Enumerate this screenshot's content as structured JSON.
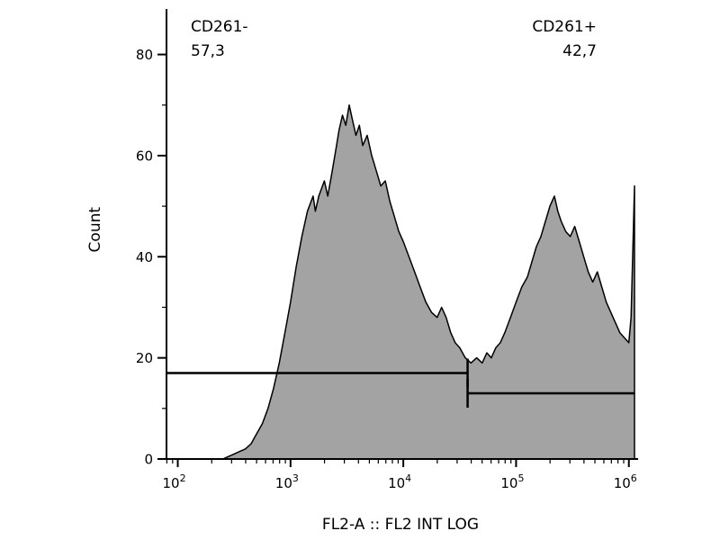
{
  "chart_data": {
    "type": "area",
    "title": "",
    "xlabel": "FL2-A :: FL2 INT LOG",
    "ylabel": "Count",
    "x_scale": "log",
    "xlim_log": [
      1.9,
      6.05
    ],
    "ylim": [
      0,
      89
    ],
    "x_ticks_exponents": [
      2,
      3,
      4,
      5,
      6
    ],
    "y_ticks": [
      0,
      20,
      40,
      60,
      80
    ],
    "y_minor_step": 10,
    "grid": false,
    "fill_color": "#a3a3a3",
    "line_color": "#000000",
    "background_color": "#ffffff",
    "points_log_count": [
      [
        2.3,
        0
      ],
      [
        2.4,
        0
      ],
      [
        2.45,
        0.5
      ],
      [
        2.5,
        1
      ],
      [
        2.55,
        1.5
      ],
      [
        2.6,
        2
      ],
      [
        2.65,
        3
      ],
      [
        2.7,
        5
      ],
      [
        2.75,
        7
      ],
      [
        2.8,
        10
      ],
      [
        2.85,
        14
      ],
      [
        2.9,
        19
      ],
      [
        2.95,
        25
      ],
      [
        3.0,
        31
      ],
      [
        3.05,
        38
      ],
      [
        3.1,
        44
      ],
      [
        3.15,
        49
      ],
      [
        3.2,
        52
      ],
      [
        3.22,
        49
      ],
      [
        3.25,
        52
      ],
      [
        3.3,
        55
      ],
      [
        3.33,
        52
      ],
      [
        3.37,
        57
      ],
      [
        3.4,
        61
      ],
      [
        3.43,
        65
      ],
      [
        3.46,
        68
      ],
      [
        3.49,
        66
      ],
      [
        3.52,
        70
      ],
      [
        3.55,
        67
      ],
      [
        3.58,
        64
      ],
      [
        3.61,
        66
      ],
      [
        3.64,
        62
      ],
      [
        3.68,
        64
      ],
      [
        3.72,
        60
      ],
      [
        3.76,
        57
      ],
      [
        3.8,
        54
      ],
      [
        3.84,
        55
      ],
      [
        3.88,
        51
      ],
      [
        3.92,
        48
      ],
      [
        3.96,
        45
      ],
      [
        4.0,
        43
      ],
      [
        4.05,
        40
      ],
      [
        4.1,
        37
      ],
      [
        4.15,
        34
      ],
      [
        4.2,
        31
      ],
      [
        4.25,
        29
      ],
      [
        4.3,
        28
      ],
      [
        4.34,
        30
      ],
      [
        4.38,
        28
      ],
      [
        4.42,
        25
      ],
      [
        4.46,
        23
      ],
      [
        4.5,
        22
      ],
      [
        4.55,
        20
      ],
      [
        4.6,
        19
      ],
      [
        4.65,
        20
      ],
      [
        4.7,
        19
      ],
      [
        4.74,
        21
      ],
      [
        4.78,
        20
      ],
      [
        4.82,
        22
      ],
      [
        4.86,
        23
      ],
      [
        4.9,
        25
      ],
      [
        4.95,
        28
      ],
      [
        5.0,
        31
      ],
      [
        5.05,
        34
      ],
      [
        5.1,
        36
      ],
      [
        5.14,
        39
      ],
      [
        5.18,
        42
      ],
      [
        5.22,
        44
      ],
      [
        5.26,
        47
      ],
      [
        5.3,
        50
      ],
      [
        5.34,
        52
      ],
      [
        5.37,
        49
      ],
      [
        5.4,
        47
      ],
      [
        5.44,
        45
      ],
      [
        5.48,
        44
      ],
      [
        5.52,
        46
      ],
      [
        5.56,
        43
      ],
      [
        5.6,
        40
      ],
      [
        5.64,
        37
      ],
      [
        5.68,
        35
      ],
      [
        5.72,
        37
      ],
      [
        5.76,
        34
      ],
      [
        5.8,
        31
      ],
      [
        5.84,
        29
      ],
      [
        5.88,
        27
      ],
      [
        5.92,
        25
      ],
      [
        5.96,
        24
      ],
      [
        6.0,
        23
      ],
      [
        6.02,
        28
      ],
      [
        6.04,
        45
      ],
      [
        6.05,
        54
      ]
    ],
    "gates": [
      {
        "label": "CD261-",
        "percent": "57,3",
        "count_level": 17,
        "from_log": 1.9,
        "to_log": 4.57,
        "tick_at": "end"
      },
      {
        "label": "CD261+",
        "percent": "42,7",
        "count_level": 13,
        "from_log": 4.57,
        "to_log": 6.05,
        "tick_at": "start"
      }
    ]
  }
}
